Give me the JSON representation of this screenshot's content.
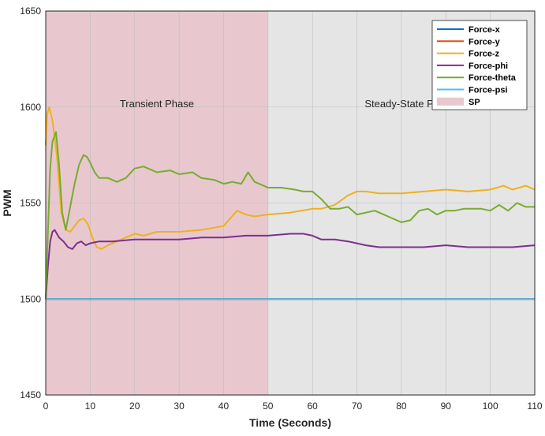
{
  "chart_data": {
    "type": "line",
    "title": "",
    "xlabel": "Time (Seconds)",
    "ylabel": "PWM",
    "xlim": [
      0,
      110
    ],
    "ylim": [
      1450,
      1650
    ],
    "xticks": [
      0,
      10,
      20,
      30,
      40,
      50,
      60,
      70,
      80,
      90,
      100,
      110
    ],
    "yticks": [
      1450,
      1500,
      1550,
      1600,
      1650
    ],
    "grid": true,
    "legend_position": "top-right",
    "shaded_regions": [
      {
        "name": "SP",
        "label": "Transient Phase",
        "x": [
          0,
          50
        ],
        "color": "#e8c8ce"
      },
      {
        "name": "",
        "label": "Steady-State Phase",
        "x": [
          50,
          110
        ],
        "color": "#e5e5e5"
      }
    ],
    "series": [
      {
        "name": "Force-x",
        "color": "#0072bd",
        "x": [
          0,
          110
        ],
        "y": [
          1500,
          1500
        ]
      },
      {
        "name": "Force-y",
        "color": "#d95319",
        "x": [
          0,
          110
        ],
        "y": [
          1500,
          1500
        ]
      },
      {
        "name": "Force-z",
        "color": "#edb120",
        "x": [
          0,
          0.3,
          0.8,
          1.5,
          2.5,
          3.5,
          4.5,
          5.5,
          6.5,
          7.5,
          8.5,
          9.5,
          10.5,
          11.5,
          12.5,
          14,
          16,
          18,
          20,
          22,
          25,
          30,
          35,
          40,
          43,
          45,
          47,
          50,
          55,
          60,
          62,
          65,
          68,
          70,
          72,
          75,
          80,
          85,
          90,
          95,
          100,
          103,
          105,
          108,
          110
        ],
        "y": [
          1580,
          1596,
          1600,
          1593,
          1575,
          1545,
          1536,
          1535,
          1538,
          1541,
          1542,
          1539,
          1532,
          1527,
          1526,
          1528,
          1530,
          1532,
          1534,
          1533,
          1535,
          1535,
          1536,
          1538,
          1546,
          1544,
          1543,
          1544,
          1545,
          1547,
          1547,
          1549,
          1554,
          1556,
          1556,
          1555,
          1555,
          1556,
          1557,
          1556,
          1557,
          1559,
          1557,
          1559,
          1557
        ]
      },
      {
        "name": "Force-phi",
        "color": "#7e2f8e",
        "x": [
          0,
          0.5,
          1,
          1.5,
          2,
          3,
          4,
          5,
          6,
          7,
          8,
          9,
          10,
          12,
          15,
          20,
          25,
          30,
          35,
          40,
          45,
          50,
          55,
          58,
          60,
          62,
          65,
          68,
          70,
          72,
          75,
          78,
          80,
          85,
          90,
          95,
          100,
          105,
          110
        ],
        "y": [
          1500,
          1517,
          1530,
          1535,
          1536,
          1532,
          1530,
          1527,
          1526,
          1529,
          1530,
          1528,
          1529,
          1530,
          1530,
          1531,
          1531,
          1531,
          1532,
          1532,
          1533,
          1533,
          1534,
          1534,
          1533,
          1531,
          1531,
          1530,
          1529,
          1528,
          1527,
          1527,
          1527,
          1527,
          1528,
          1527,
          1527,
          1527,
          1528
        ]
      },
      {
        "name": "Force-theta",
        "color": "#77ac30",
        "x": [
          0,
          0.5,
          1,
          1.5,
          2.3,
          3,
          3.7,
          4.5,
          5.5,
          6.5,
          7.5,
          8.5,
          9.3,
          10,
          11,
          12,
          14,
          16,
          18,
          20,
          22,
          25,
          28,
          30,
          33,
          35,
          38,
          40,
          42,
          44,
          45.5,
          47,
          48,
          50,
          53,
          56,
          58,
          60,
          62,
          64,
          66,
          68,
          70,
          72,
          74,
          76,
          78,
          80,
          82,
          84,
          86,
          88,
          90,
          92,
          94,
          96,
          98,
          100,
          102,
          104,
          106,
          108,
          110
        ],
        "y": [
          1500,
          1535,
          1568,
          1582,
          1587,
          1570,
          1545,
          1536,
          1548,
          1560,
          1570,
          1575,
          1574,
          1571,
          1566,
          1563,
          1563,
          1561,
          1563,
          1568,
          1569,
          1566,
          1567,
          1565,
          1566,
          1563,
          1562,
          1560,
          1561,
          1560,
          1566,
          1561,
          1560,
          1558,
          1558,
          1557,
          1556,
          1556,
          1552,
          1547,
          1547,
          1548,
          1544,
          1545,
          1546,
          1544,
          1542,
          1540,
          1541,
          1546,
          1547,
          1544,
          1546,
          1546,
          1547,
          1547,
          1547,
          1546,
          1549,
          1546,
          1550,
          1548,
          1548
        ]
      },
      {
        "name": "Force-psi",
        "color": "#4dbeee",
        "x": [
          0,
          110
        ],
        "y": [
          1500,
          1500
        ]
      }
    ]
  }
}
